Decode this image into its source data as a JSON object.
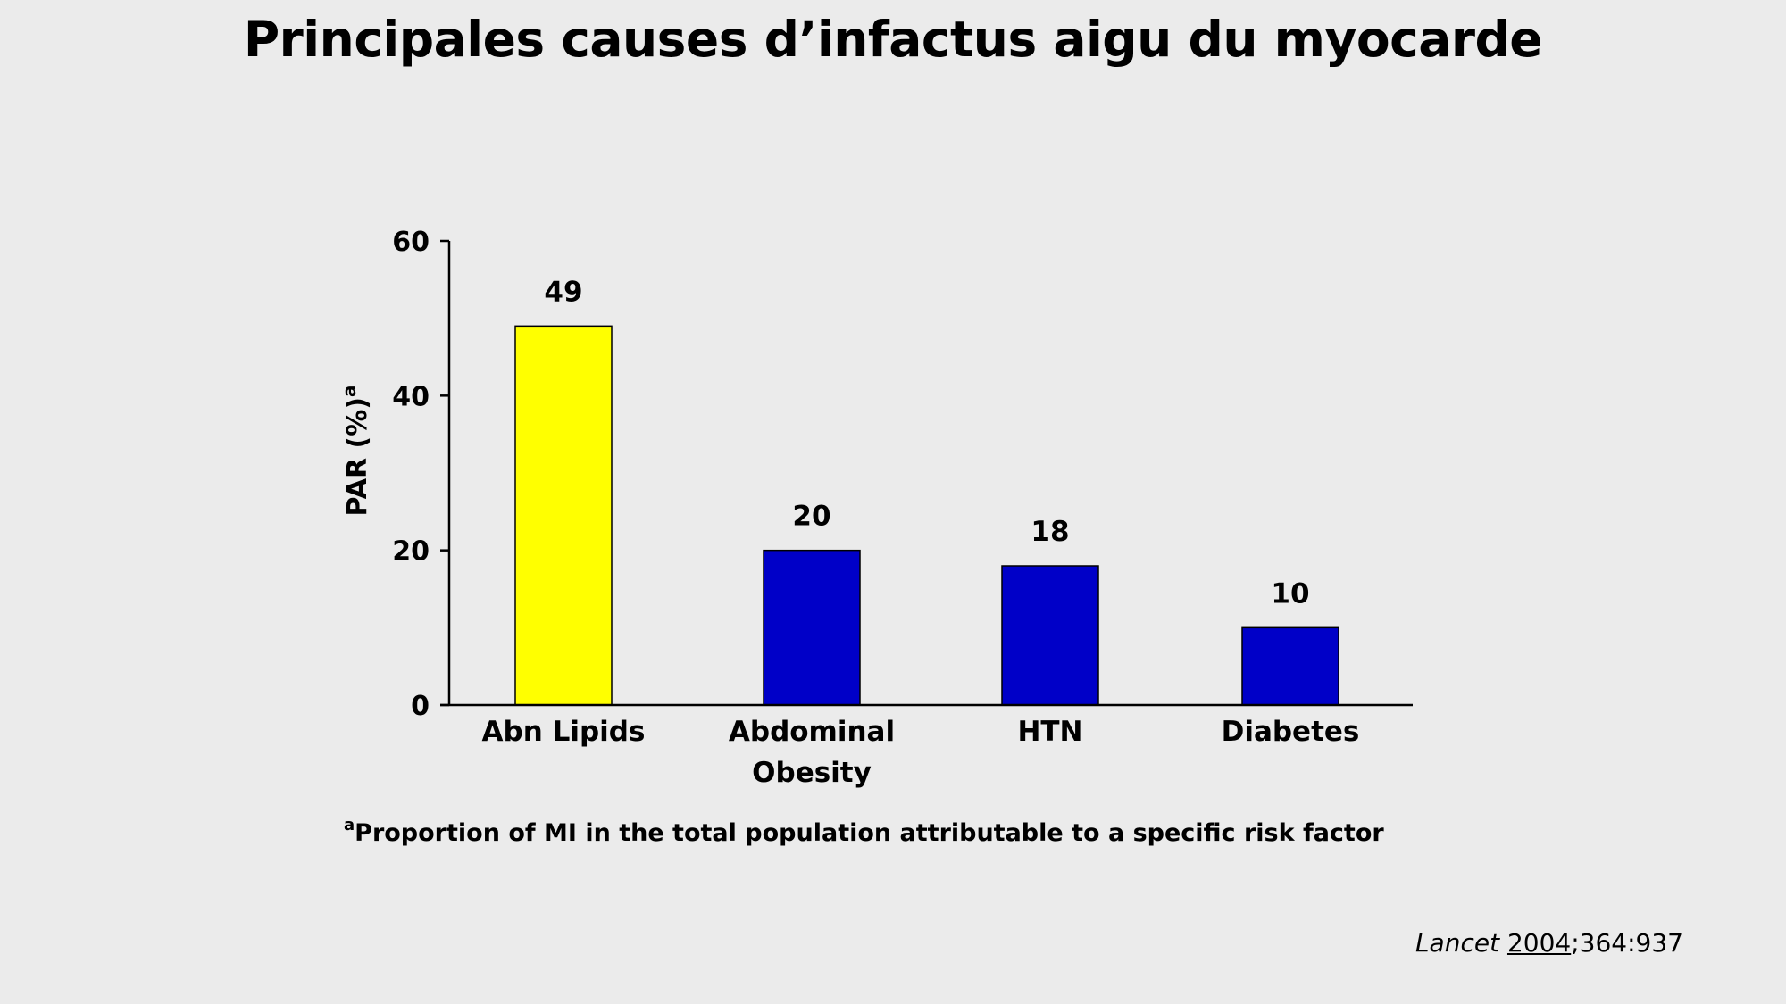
{
  "slide": {
    "title": "Principales causes d’infactus aigu du myocarde"
  },
  "chart_data": {
    "type": "bar",
    "title": "",
    "categories": [
      [
        "Abn Lipids"
      ],
      [
        "Abdominal",
        "Obesity"
      ],
      [
        "HTN"
      ],
      [
        "Diabetes"
      ]
    ],
    "values": [
      49,
      20,
      18,
      10
    ],
    "data_labels": [
      "49",
      "20",
      "18",
      "10"
    ],
    "colors": [
      "#ffff00",
      "#0000c8",
      "#0000c8",
      "#0000c8"
    ],
    "ylabel": "PAR (%)",
    "ylabel_superscript": "a",
    "xlabel": "",
    "ylim": [
      0,
      60
    ],
    "yticks": [
      0,
      20,
      40,
      60
    ],
    "grid": false,
    "legend": "none"
  },
  "footnote": {
    "marker": "a",
    "text": "Proportion of MI in the total population attributable to a specific risk factor"
  },
  "citation": {
    "journal": "Lancet",
    "year": "2004",
    "rest": ";364:937"
  }
}
